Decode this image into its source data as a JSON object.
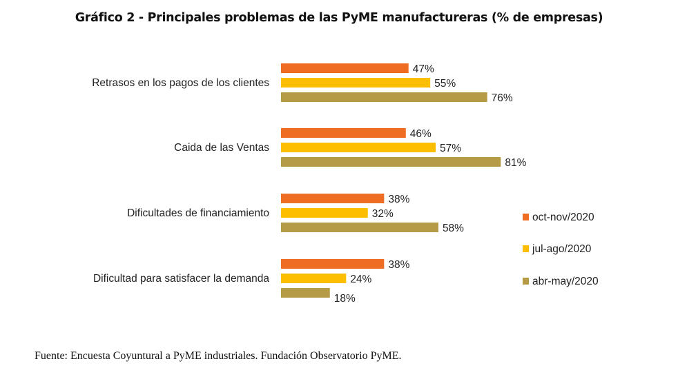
{
  "chart_data": {
    "type": "bar",
    "orientation": "horizontal",
    "title": "Gráfico 2 - Principales problemas de las PyME manufactureras (% de empresas)",
    "xlabel": "",
    "ylabel": "",
    "xlim": [
      0,
      100
    ],
    "grid": false,
    "legend_position": "right",
    "categories": [
      "Retrasos en los pagos de los clientes",
      "Caida de las Ventas",
      "Dificultades de financiamiento",
      "Dificultad para satisfacer la demanda"
    ],
    "series": [
      {
        "name": "oct-nov/2020",
        "color": "#ef6c23",
        "values": [
          47,
          46,
          38,
          38
        ]
      },
      {
        "name": "jul-ago/2020",
        "color": "#fdbe00",
        "values": [
          55,
          57,
          32,
          24
        ]
      },
      {
        "name": "abr-may/2020",
        "color": "#b59b45",
        "values": [
          76,
          81,
          58,
          18
        ]
      }
    ],
    "value_suffix": "%"
  },
  "source": "Fuente: Encuesta Coyuntural a PyME industriales. Fundación Observatorio PyME."
}
